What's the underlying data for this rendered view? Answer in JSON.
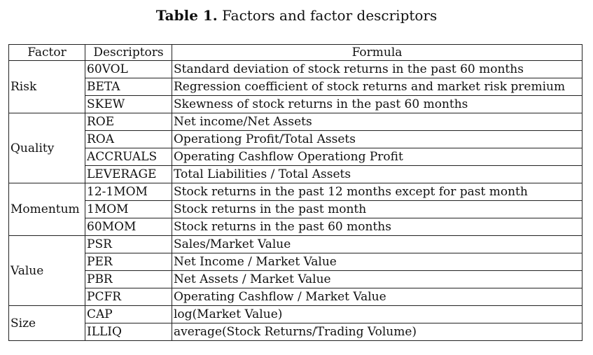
{
  "caption": {
    "label": "Table 1.",
    "text": "Factors and factor descriptors"
  },
  "headers": {
    "factor": "Factor",
    "descriptors": "Descriptors",
    "formula": "Formula"
  },
  "groups": [
    {
      "factor": "Risk",
      "rows": [
        {
          "descriptor": "60VOL",
          "formula": "Standard deviation of stock returns in the past 60 months"
        },
        {
          "descriptor": "BETA",
          "formula": "Regression coefficient of stock returns and market risk premium"
        },
        {
          "descriptor": "SKEW",
          "formula": "Skewness of stock returns in the past 60 months"
        }
      ]
    },
    {
      "factor": "Quality",
      "rows": [
        {
          "descriptor": "ROE",
          "formula": "Net income/Net Assets"
        },
        {
          "descriptor": "ROA",
          "formula": "Operationg Profit/Total Assets"
        },
        {
          "descriptor": "ACCRUALS",
          "formula": "Operating Cashflow  Operationg Profit"
        },
        {
          "descriptor": "LEVERAGE",
          "formula": "Total Liabilities / Total Assets"
        }
      ]
    },
    {
      "factor": "Momentum",
      "rows": [
        {
          "descriptor": "12-1MOM",
          "formula": "Stock returns in the past 12 months except for past month"
        },
        {
          "descriptor": "1MOM",
          "formula": "Stock returns in the past month"
        },
        {
          "descriptor": "60MOM",
          "formula": "Stock returns in the past 60 months"
        }
      ]
    },
    {
      "factor": "Value",
      "rows": [
        {
          "descriptor": "PSR",
          "formula": "Sales/Market Value"
        },
        {
          "descriptor": "PER",
          "formula": "Net Income / Market Value"
        },
        {
          "descriptor": "PBR",
          "formula": "Net Assets / Market Value"
        },
        {
          "descriptor": "PCFR",
          "formula": "Operating Cashflow / Market Value"
        }
      ]
    },
    {
      "factor": "Size",
      "rows": [
        {
          "descriptor": "CAP",
          "formula": "log(Market Value)"
        },
        {
          "descriptor": "ILLIQ",
          "formula": "average(Stock Returns/Trading Volume)"
        }
      ]
    }
  ]
}
